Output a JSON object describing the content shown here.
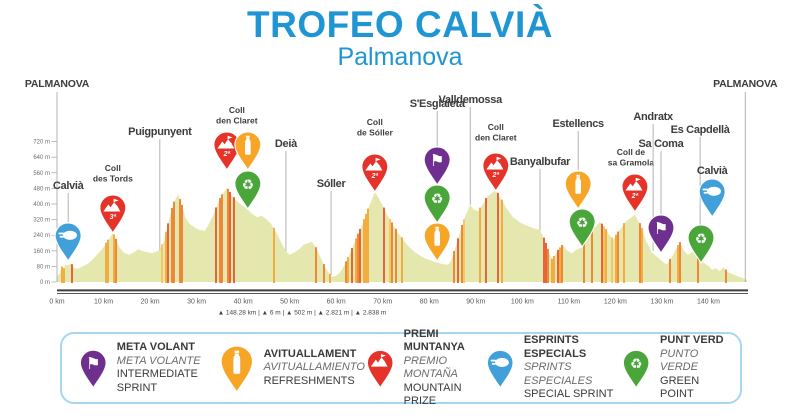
{
  "header": {
    "title": "TROFEO CALVIÀ",
    "subtitle": "Palmanova",
    "accent_color": "#2095d3"
  },
  "chart_data": {
    "type": "area",
    "title": "Trofeo Calvià — Palmanova stage elevation profile",
    "x_unit": "km",
    "y_unit": "m",
    "xlim": [
      0,
      148.28
    ],
    "ylim": [
      0,
      760
    ],
    "y_ticks": [
      0,
      80,
      160,
      240,
      320,
      400,
      480,
      560,
      640,
      720
    ],
    "x_ticks": [
      0,
      10,
      20,
      30,
      40,
      50,
      60,
      70,
      80,
      90,
      100,
      110,
      120,
      130,
      140
    ],
    "endpoints": {
      "start": "PALMANOVA",
      "finish": "PALMANOVA"
    },
    "stats": {
      "separator": "|",
      "items": [
        {
          "icon": "mountain-icon",
          "value": "148.28 km"
        },
        {
          "icon": "mountain-icon",
          "value": "6 m"
        },
        {
          "icon": "mountain-icon",
          "value": "502 m"
        },
        {
          "icon": "mountain-icon",
          "value": "2.821 m"
        },
        {
          "icon": "mountain-icon",
          "value": "2.838 m"
        }
      ]
    },
    "colors": {
      "profile_base": "#e4e8ae",
      "stripe_palette": [
        "#f6c35c",
        "#f4a634",
        "#ee7e2b",
        "#e8552a"
      ],
      "axis": "#3f3f3f",
      "tick_text": "#6d6e71",
      "label_text": "#3c3c3b",
      "marker_line": "#a0a0a0",
      "pin_purple": "#6f2f8f",
      "pin_orange": "#f6a526",
      "pin_red": "#e6332a",
      "pin_blue": "#41a0da",
      "pin_green": "#4aa53a"
    },
    "profile": [
      [
        0,
        25
      ],
      [
        0.6,
        45
      ],
      [
        1,
        78
      ],
      [
        1.4,
        58
      ],
      [
        1.8,
        88
      ],
      [
        2.4,
        86
      ],
      [
        3,
        95
      ],
      [
        3.6,
        72
      ],
      [
        4.5,
        68
      ],
      [
        5.5,
        80
      ],
      [
        6.5,
        92
      ],
      [
        7.5,
        112
      ],
      [
        8.5,
        138
      ],
      [
        9.5,
        162
      ],
      [
        10.5,
        195
      ],
      [
        11.3,
        225
      ],
      [
        12,
        252
      ],
      [
        12.7,
        215
      ],
      [
        13.5,
        175
      ],
      [
        14.5,
        148
      ],
      [
        15.5,
        140
      ],
      [
        16.5,
        152
      ],
      [
        17.5,
        168
      ],
      [
        18.5,
        158
      ],
      [
        19.5,
        152
      ],
      [
        20.5,
        148
      ],
      [
        21.3,
        155
      ],
      [
        22.1,
        165
      ],
      [
        23,
        210
      ],
      [
        24,
        310
      ],
      [
        25,
        400
      ],
      [
        26,
        450
      ],
      [
        26.8,
        395
      ],
      [
        27.6,
        330
      ],
      [
        28.5,
        298
      ],
      [
        29.5,
        280
      ],
      [
        30.5,
        268
      ],
      [
        31.8,
        262
      ],
      [
        32.8,
        305
      ],
      [
        33.8,
        355
      ],
      [
        34.8,
        415
      ],
      [
        35.7,
        455
      ],
      [
        36.5,
        482
      ],
      [
        37.3,
        452
      ],
      [
        38.2,
        425
      ],
      [
        39.3,
        402
      ],
      [
        40.2,
        385
      ],
      [
        41,
        370
      ],
      [
        42,
        348
      ],
      [
        43,
        332
      ],
      [
        44,
        340
      ],
      [
        45,
        322
      ],
      [
        46,
        298
      ],
      [
        47,
        258
      ],
      [
        48,
        212
      ],
      [
        49.2,
        158
      ],
      [
        50,
        140
      ],
      [
        51,
        152
      ],
      [
        52,
        168
      ],
      [
        53,
        192
      ],
      [
        54.8,
        206
      ],
      [
        55.8,
        168
      ],
      [
        56.6,
        128
      ],
      [
        57.6,
        75
      ],
      [
        58.9,
        28
      ],
      [
        59.8,
        30
      ],
      [
        60.4,
        40
      ],
      [
        61.2,
        62
      ],
      [
        62.2,
        105
      ],
      [
        63.2,
        158
      ],
      [
        64.2,
        215
      ],
      [
        65.2,
        272
      ],
      [
        66.2,
        330
      ],
      [
        67.2,
        395
      ],
      [
        68.3,
        462
      ],
      [
        69.2,
        428
      ],
      [
        70.2,
        380
      ],
      [
        71.2,
        332
      ],
      [
        72.2,
        292
      ],
      [
        73.2,
        255
      ],
      [
        74.2,
        222
      ],
      [
        75.2,
        192
      ],
      [
        76.2,
        168
      ],
      [
        77.2,
        148
      ],
      [
        78.4,
        130
      ],
      [
        79.6,
        116
      ],
      [
        80.8,
        106
      ],
      [
        81.7,
        100
      ],
      [
        82.6,
        94
      ],
      [
        83.6,
        88
      ],
      [
        84.3,
        92
      ],
      [
        85,
        130
      ],
      [
        86,
        205
      ],
      [
        87,
        285
      ],
      [
        88,
        352
      ],
      [
        88.8,
        395
      ],
      [
        89.6,
        372
      ],
      [
        90.5,
        362
      ],
      [
        91.5,
        398
      ],
      [
        92.5,
        438
      ],
      [
        94.3,
        472
      ],
      [
        95.3,
        430
      ],
      [
        96.5,
        382
      ],
      [
        98,
        332
      ],
      [
        99.5,
        305
      ],
      [
        101,
        288
      ],
      [
        102.5,
        275
      ],
      [
        103.8,
        267
      ],
      [
        104.8,
        215
      ],
      [
        105.8,
        145
      ],
      [
        106.4,
        113
      ],
      [
        107.4,
        152
      ],
      [
        108.7,
        190
      ],
      [
        109.6,
        162
      ],
      [
        110.6,
        146
      ],
      [
        111.6,
        165
      ],
      [
        113,
        180
      ],
      [
        114.2,
        235
      ],
      [
        115.5,
        278
      ],
      [
        116.7,
        308
      ],
      [
        117.8,
        272
      ],
      [
        119.5,
        215
      ],
      [
        120.8,
        262
      ],
      [
        122.3,
        312
      ],
      [
        124.2,
        344
      ],
      [
        125.4,
        292
      ],
      [
        126.6,
        212
      ],
      [
        127.8,
        152
      ],
      [
        129,
        128
      ],
      [
        130,
        108
      ],
      [
        131,
        88
      ],
      [
        132,
        122
      ],
      [
        133,
        168
      ],
      [
        133.9,
        200
      ],
      [
        134.8,
        158
      ],
      [
        135.6,
        138
      ],
      [
        137.1,
        164
      ],
      [
        138.2,
        122
      ],
      [
        139,
        98
      ],
      [
        140,
        82
      ],
      [
        140.8,
        62
      ],
      [
        141.6,
        72
      ],
      [
        142.4,
        56
      ],
      [
        143.2,
        76
      ],
      [
        144,
        52
      ],
      [
        145,
        42
      ],
      [
        146,
        32
      ],
      [
        147.2,
        22
      ],
      [
        148.28,
        10
      ]
    ],
    "markers": [
      {
        "name": "PALMANOVA",
        "kind": "endpoint",
        "km": 0,
        "label_y": 12
      },
      {
        "name": "Calvià",
        "kind": "pin",
        "km": 2.4,
        "label_y": 114,
        "line_to": 147,
        "pins": [
          {
            "type": "sprint",
            "tip_y": 186
          }
        ]
      },
      {
        "name": "Coll des Tords",
        "lines": [
          "Coll",
          "des Tords"
        ],
        "kind": "coll",
        "km": 12,
        "label_y": 96,
        "pins": [
          {
            "type": "mountain",
            "rank": "3ª",
            "tip_y": 158
          }
        ]
      },
      {
        "name": "Puigpunyent",
        "kind": "line",
        "km": 22.1,
        "label_y": 60,
        "line_to": 175
      },
      {
        "name": "Coll den Claret",
        "lines": [
          "Coll",
          "den Claret"
        ],
        "kind": "coll",
        "km": 36.5,
        "label_y": 38,
        "label_dx": 10,
        "pins": [
          {
            "type": "mountain",
            "rank": "2ª",
            "tip_y": 95
          },
          {
            "type": "bottle",
            "tip_y": 95,
            "dx": 21
          },
          {
            "type": "recycle",
            "tip_y": 134,
            "dx": 21
          }
        ]
      },
      {
        "name": "Deià",
        "kind": "line",
        "km": 49.2,
        "label_y": 72,
        "line_to": 176
      },
      {
        "name": "Sóller",
        "kind": "line",
        "km": 58.9,
        "label_y": 112,
        "line_to": 200
      },
      {
        "name": "Coll de Sóller",
        "lines": [
          "Coll",
          "de Sóller"
        ],
        "kind": "coll",
        "km": 68.3,
        "label_y": 50,
        "pins": [
          {
            "type": "mountain",
            "rank": "2ª",
            "tip_y": 117
          }
        ]
      },
      {
        "name": "S'Esglaieta",
        "kind": "pin",
        "km": 81.7,
        "label_y": 32,
        "line_to": 71,
        "pins": [
          {
            "type": "flag",
            "tip_y": 110
          },
          {
            "type": "recycle",
            "tip_y": 148
          },
          {
            "type": "bottle",
            "tip_y": 186
          }
        ]
      },
      {
        "name": "Valldemossa",
        "kind": "line",
        "km": 88.8,
        "label_y": 28,
        "line_to": 130
      },
      {
        "name": "Coll den Claret",
        "lines": [
          "Coll",
          "den Claret"
        ],
        "kind": "coll",
        "km": 94.3,
        "label_y": 55,
        "pins": [
          {
            "type": "mountain",
            "rank": "2ª",
            "tip_y": 116
          }
        ]
      },
      {
        "name": "Banyalbufar",
        "kind": "line",
        "km": 103.8,
        "label_y": 90,
        "line_to": 155
      },
      {
        "name": "Estellencs",
        "kind": "pin",
        "km": 112,
        "label_y": 52,
        "line_to": 95,
        "pins": [
          {
            "type": "bottle",
            "tip_y": 134
          },
          {
            "type": "recycle",
            "tip_y": 172,
            "dx": 4
          }
        ]
      },
      {
        "name": "Coll de sa Gramola",
        "lines": [
          "Coll de",
          "sa Gramola"
        ],
        "kind": "coll",
        "km": 124.2,
        "label_y": 80,
        "label_dx": -4,
        "pins": [
          {
            "type": "mountain",
            "rank": "2ª",
            "tip_y": 137
          }
        ]
      },
      {
        "name": "Andratx",
        "kind": "line",
        "km": 128.1,
        "label_y": 45,
        "line_to": 176
      },
      {
        "name": "Sa Coma",
        "kind": "pin",
        "km": 129.8,
        "label_y": 72,
        "line_to": 139,
        "pins": [
          {
            "type": "flag",
            "tip_y": 178
          }
        ]
      },
      {
        "name": "Es Capdellà",
        "kind": "line",
        "km": 138.2,
        "label_y": 58,
        "line_to": 183
      },
      {
        "name": "",
        "kind": "pin",
        "km": 138.4,
        "label_y": 0,
        "pins": [
          {
            "type": "recycle",
            "tip_y": 188
          }
        ]
      },
      {
        "name": "Calvià",
        "kind": "pin",
        "km": 140.8,
        "label_y": 99,
        "pins": [
          {
            "type": "sprint",
            "tip_y": 142
          }
        ]
      },
      {
        "name": "PALMANOVA",
        "kind": "endpoint",
        "km": 147.9,
        "label_y": 12
      }
    ]
  },
  "legend": {
    "items": [
      {
        "pin": "flag",
        "color_key": "pin_purple",
        "line1": "META VOLANT",
        "line2": "META VOLANTE",
        "line3": "INTERMEDIATE SPRINT"
      },
      {
        "pin": "bottle",
        "color_key": "pin_orange",
        "line1": "AVITUALLAMENT",
        "line2": "AVITUALLAMIENTO",
        "line3": "REFRESHMENTS"
      },
      {
        "pin": "mountain",
        "color_key": "pin_red",
        "line1": "PREMI MUNTANYA",
        "line2": "PREMIO MONTAÑA",
        "line3": "MOUNTAIN PRIZE"
      },
      {
        "pin": "sprint",
        "color_key": "pin_blue",
        "line1": "ESPRINTS ESPECIALS",
        "line2": "SPRINTS ESPECIALES",
        "line3": "SPECIAL SPRINT"
      },
      {
        "pin": "recycle",
        "color_key": "pin_green",
        "line1": "PUNT VERD",
        "line2": "PUNTO VERDE",
        "line3": "GREEN POINT"
      }
    ]
  }
}
